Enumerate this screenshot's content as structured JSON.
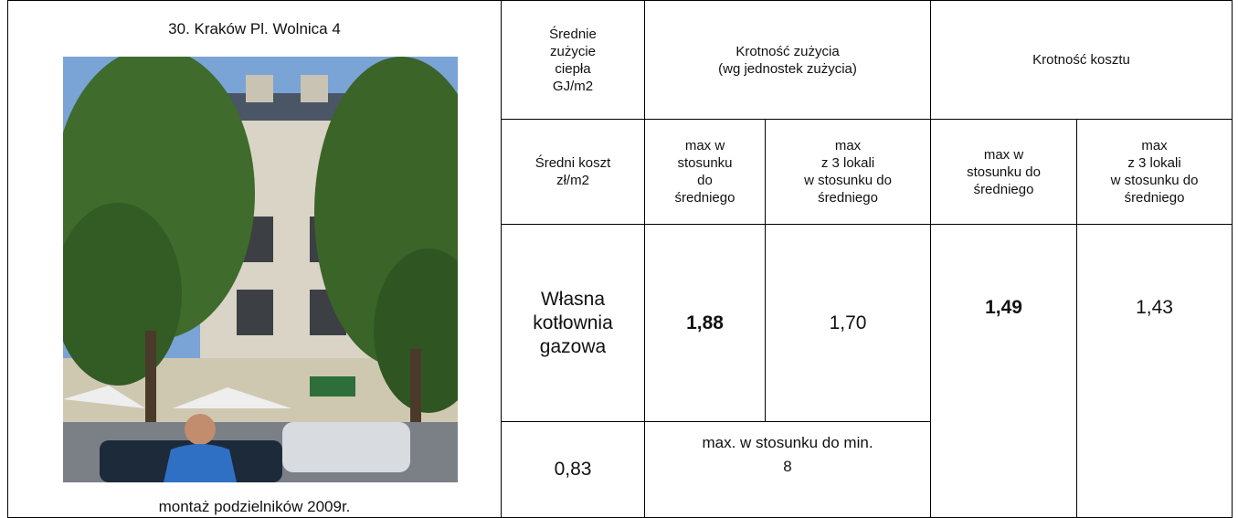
{
  "left": {
    "title": "30. Kraków Pl. Wolnica 4",
    "caption": "montaż podzielników 2009r."
  },
  "table": {
    "header": [
      "Średnie\nzużycie\nciepła\nGJ/m2",
      "Krotność zużycia\n(wg jednostek zużycia)",
      "Krotność  kosztu"
    ],
    "subheader": [
      "Średni koszt\nzł/m2",
      "max w\nstosunku\ndo\nśredniego",
      "max\nz 3 lokali\nw stosunku do\nśredniego",
      "max w\nstosunku do\nśredniego",
      "max\nz 3 lokali\nw stosunku do\nśredniego"
    ],
    "rows": [
      [
        "Własna\nkotłownia\ngazowa",
        "1,88",
        "1,70",
        "1,49",
        "1,43"
      ],
      [
        "0,83",
        "max. w stosunku do min.\n8"
      ]
    ]
  }
}
